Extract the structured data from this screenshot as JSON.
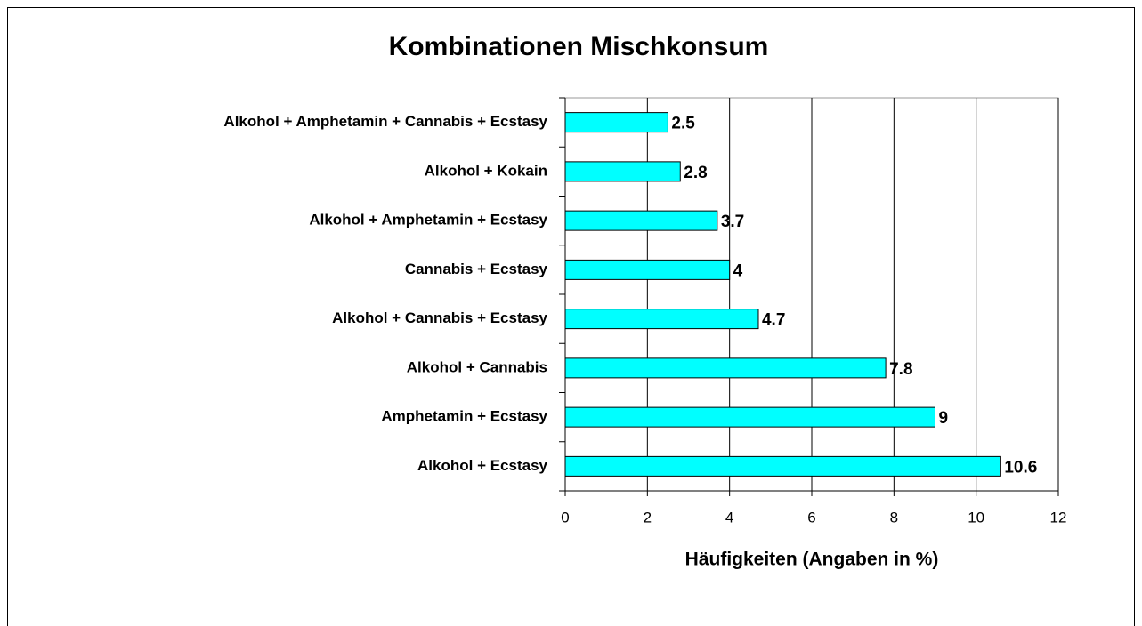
{
  "chart_data": {
    "type": "bar",
    "orientation": "horizontal",
    "title": "Kombinationen Mischkonsum",
    "x_label": "Häufigkeiten (Angaben in %)",
    "categories": [
      "Alkohol + Amphetamin + Cannabis + Ecstasy",
      "Alkohol + Kokain",
      "Alkohol + Amphetamin + Ecstasy",
      "Cannabis + Ecstasy",
      "Alkohol + Cannabis + Ecstasy",
      "Alkohol + Cannabis",
      "Amphetamin + Ecstasy",
      "Alkohol + Ecstasy"
    ],
    "values": [
      2.5,
      2.8,
      3.7,
      4,
      4.7,
      7.8,
      9,
      10.6
    ],
    "color": "#00ffff",
    "xlim": [
      0,
      12
    ],
    "xticks": [
      0,
      2,
      4,
      6,
      8,
      10,
      12
    ],
    "grid": true
  }
}
